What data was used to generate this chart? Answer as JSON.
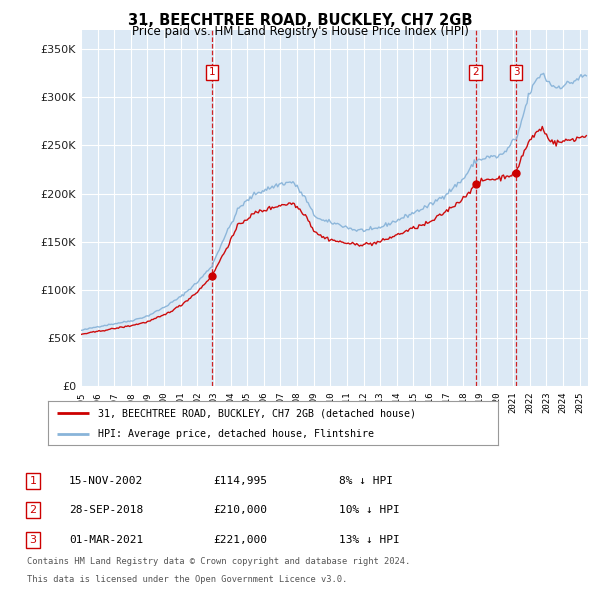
{
  "title": "31, BEECHTREE ROAD, BUCKLEY, CH7 2GB",
  "subtitle": "Price paid vs. HM Land Registry's House Price Index (HPI)",
  "property_label": "31, BEECHTREE ROAD, BUCKLEY, CH7 2GB (detached house)",
  "hpi_label": "HPI: Average price, detached house, Flintshire",
  "footnote1": "Contains HM Land Registry data © Crown copyright and database right 2024.",
  "footnote2": "This data is licensed under the Open Government Licence v3.0.",
  "sales": [
    {
      "num": "1",
      "date": "15-NOV-2002",
      "price": "£114,995",
      "hpi_diff": "8% ↓ HPI"
    },
    {
      "num": "2",
      "date": "28-SEP-2018",
      "price": "£210,000",
      "hpi_diff": "10% ↓ HPI"
    },
    {
      "num": "3",
      "date": "01-MAR-2021",
      "price": "£221,000",
      "hpi_diff": "13% ↓ HPI"
    }
  ],
  "sale_dates_decimal": [
    2002.88,
    2018.74,
    2021.17
  ],
  "sale_prices": [
    114995,
    210000,
    221000
  ],
  "hpi_milestones": {
    "1995.0": 58000,
    "1996.0": 62000,
    "1997.0": 65000,
    "1998.0": 68000,
    "1999.0": 73000,
    "2000.0": 82000,
    "2001.0": 93000,
    "2002.0": 108000,
    "2002.88": 125000,
    "2003.5": 150000,
    "2004.5": 185000,
    "2005.5": 200000,
    "2007.0": 210000,
    "2007.75": 212000,
    "2008.5": 195000,
    "2009.0": 178000,
    "2009.5": 172000,
    "2010.5": 168000,
    "2011.5": 162000,
    "2012.5": 162000,
    "2013.0": 165000,
    "2014.0": 172000,
    "2015.0": 180000,
    "2016.0": 188000,
    "2017.0": 200000,
    "2018.0": 215000,
    "2018.74": 234000,
    "2019.0": 235000,
    "2019.5": 238000,
    "2020.0": 238000,
    "2020.5": 242000,
    "2021.0": 255000,
    "2021.17": 254000,
    "2021.5": 275000,
    "2022.0": 305000,
    "2022.5": 320000,
    "2022.75": 325000,
    "2023.0": 318000,
    "2023.5": 310000,
    "2024.0": 312000,
    "2024.5": 315000,
    "2025.0": 320000,
    "2025.4": 322000
  },
  "prop_milestones": {
    "1995.0": 54000,
    "1996.0": 57000,
    "1997.0": 60000,
    "1998.0": 63000,
    "1999.0": 67000,
    "2000.0": 74000,
    "2001.0": 84000,
    "2002.0": 98000,
    "2002.88": 114995,
    "2003.5": 135000,
    "2004.5": 168000,
    "2005.5": 180000,
    "2007.0": 188000,
    "2007.75": 190000,
    "2008.5": 178000,
    "2009.0": 162000,
    "2009.5": 155000,
    "2010.5": 150000,
    "2011.5": 147000,
    "2012.5": 148000,
    "2013.0": 150000,
    "2014.0": 157000,
    "2015.0": 164000,
    "2016.0": 170000,
    "2017.0": 182000,
    "2018.0": 195000,
    "2018.74": 210000,
    "2019.0": 212000,
    "2019.5": 215000,
    "2020.0": 215000,
    "2020.5": 218000,
    "2021.0": 220000,
    "2021.17": 221000,
    "2021.5": 238000,
    "2022.0": 255000,
    "2022.5": 265000,
    "2022.75": 268000,
    "2023.0": 260000,
    "2023.5": 252000,
    "2024.0": 254000,
    "2024.5": 256000,
    "2025.0": 258000,
    "2025.4": 260000
  },
  "ylim": [
    0,
    370000
  ],
  "yticks": [
    0,
    50000,
    100000,
    150000,
    200000,
    250000,
    300000,
    350000
  ],
  "xlim_start": 1995.0,
  "xlim_end": 2025.5,
  "bg_color": "#dce9f5",
  "grid_color": "#ffffff",
  "line_color_property": "#cc0000",
  "line_color_hpi": "#89b4d9",
  "vline_color": "#cc0000",
  "noise_seed": 42,
  "noise_scale_hpi": 0.006,
  "noise_scale_prop": 0.006
}
